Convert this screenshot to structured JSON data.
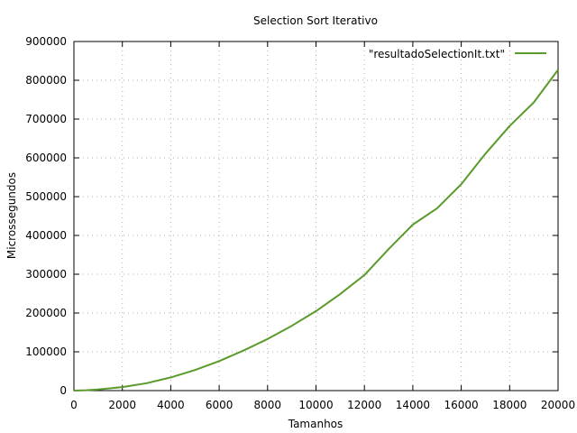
{
  "chart_data": {
    "type": "line",
    "title": "Selection Sort Iterativo",
    "xlabel": "Tamanhos",
    "ylabel": "Microssegundos",
    "xlim": [
      0,
      20000
    ],
    "ylim": [
      0,
      900000
    ],
    "x_ticks": [
      0,
      2000,
      4000,
      6000,
      8000,
      10000,
      12000,
      14000,
      16000,
      18000,
      20000
    ],
    "y_ticks": [
      0,
      100000,
      200000,
      300000,
      400000,
      500000,
      600000,
      700000,
      800000,
      900000
    ],
    "grid": true,
    "legend_position": "top-right",
    "series": [
      {
        "name": "\"resultadoSelectionIt.txt\"",
        "color": "#5a9a2a",
        "x": [
          0,
          500,
          1000,
          2000,
          3000,
          4000,
          5000,
          6000,
          7000,
          8000,
          9000,
          10000,
          11000,
          12000,
          13000,
          14000,
          15000,
          16000,
          17000,
          18000,
          19000,
          20000
        ],
        "y": [
          0,
          1000,
          3000,
          9000,
          19000,
          34000,
          53000,
          76000,
          103000,
          133000,
          167000,
          205000,
          249000,
          298000,
          365000,
          428000,
          470000,
          532000,
          611000,
          682000,
          743000,
          827000
        ]
      }
    ]
  }
}
